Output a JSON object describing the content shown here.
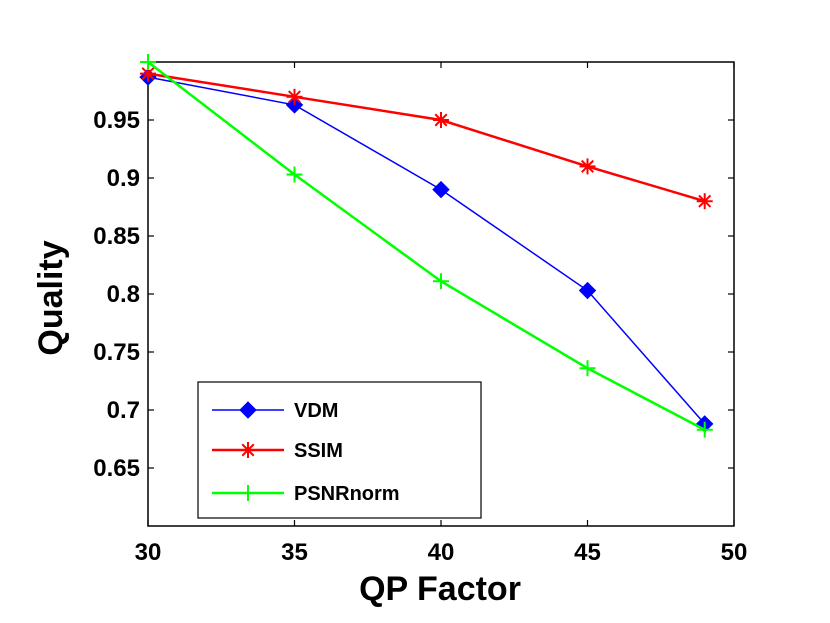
{
  "chart_data": {
    "type": "line",
    "title": "",
    "xlabel": "QP Factor",
    "ylabel": "Quality",
    "xlim": [
      30,
      50
    ],
    "ylim": [
      0.6,
      1.0
    ],
    "xticks": [
      30,
      35,
      40,
      45,
      50
    ],
    "yticks": [
      0.65,
      0.7,
      0.75,
      0.8,
      0.85,
      0.9,
      0.95
    ],
    "ytick_labels": [
      "0.65",
      "0.7",
      "0.75",
      "0.8",
      "0.85",
      "0.9",
      "0.95"
    ],
    "grid": false,
    "legend_position": "bottom-left",
    "series": [
      {
        "name": "VDM",
        "color": "#0000ff",
        "marker": "diamond",
        "x": [
          30,
          35,
          40,
          45,
          49
        ],
        "y": [
          0.987,
          0.963,
          0.89,
          0.803,
          0.688
        ]
      },
      {
        "name": "SSIM",
        "color": "#ff0000",
        "marker": "asterisk",
        "x": [
          30,
          35,
          40,
          45,
          49
        ],
        "y": [
          0.99,
          0.97,
          0.95,
          0.91,
          0.88
        ]
      },
      {
        "name": "PSNRnorm",
        "color": "#00ff00",
        "marker": "plus",
        "x": [
          30,
          35,
          40,
          45,
          49
        ],
        "y": [
          1.0,
          0.903,
          0.811,
          0.736,
          0.683
        ]
      }
    ]
  }
}
